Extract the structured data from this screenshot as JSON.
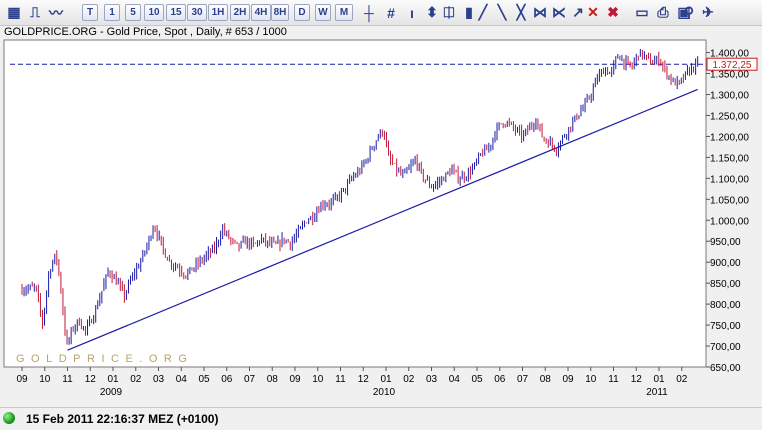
{
  "toolbar": {
    "buttons": [
      {
        "label": "▦",
        "name": "bar-chart-type-icon"
      },
      {
        "label": "⎍",
        "name": "ohlc-chart-type-icon"
      },
      {
        "label": "〰",
        "name": "line-chart-type-icon"
      },
      {
        "label": "T",
        "name": "tick-interval-button"
      },
      {
        "label": "1",
        "name": "interval-1-button"
      },
      {
        "label": "5",
        "name": "interval-5-button"
      },
      {
        "label": "10",
        "name": "interval-10-button"
      },
      {
        "label": "15",
        "name": "interval-15-button"
      },
      {
        "label": "30",
        "name": "interval-30-button"
      },
      {
        "label": "1H",
        "name": "interval-1h-button"
      },
      {
        "label": "2H",
        "name": "interval-2h-button"
      },
      {
        "label": "4H",
        "name": "interval-4h-button"
      },
      {
        "label": "8H",
        "name": "interval-8h-button"
      },
      {
        "label": "D",
        "name": "interval-daily-button"
      },
      {
        "label": "W",
        "name": "interval-weekly-button"
      },
      {
        "label": "M",
        "name": "interval-monthly-button"
      },
      {
        "label": "┼",
        "name": "crosshair-icon"
      },
      {
        "label": "#",
        "name": "grid-icon"
      },
      {
        "label": "ı",
        "name": "info-icon"
      },
      {
        "label": "⬍",
        "name": "scale-icon"
      },
      {
        "label": "⎅",
        "name": "auto-scale-icon"
      },
      {
        "label": "▮",
        "name": "volume-icon"
      },
      {
        "label": "╱",
        "name": "trendline-icon"
      },
      {
        "label": "╲",
        "name": "trendline-down-icon"
      },
      {
        "label": "╳",
        "name": "channel-icon"
      },
      {
        "label": "⋈",
        "name": "fibonacci-icon"
      },
      {
        "label": "⋉",
        "name": "gann-icon"
      },
      {
        "label": "↗",
        "name": "arrow-tool-icon"
      },
      {
        "label": "✕",
        "name": "delete-icon"
      },
      {
        "label": "✖",
        "name": "delete-all-icon"
      },
      {
        "label": "▭",
        "name": "page-setup-icon"
      },
      {
        "label": "⎙",
        "name": "print-icon"
      },
      {
        "label": "▣",
        "name": "save-icon"
      },
      {
        "label": "⚲",
        "name": "zoom-icon"
      },
      {
        "label": "✈",
        "name": "pan-icon"
      }
    ]
  },
  "chart_info": "GOLDPRICE.ORG - Gold Price, Spot , Daily, # 653 / 1000",
  "watermark": "GOLDPRICE.ORG",
  "status": {
    "datetime": "15 Feb 2011 22:16:37  MEZ (+0100)"
  },
  "chart_data": {
    "type": "ohlc",
    "title": "GOLDPRICE.ORG - Gold Price, Spot , Daily, # 653 / 1000",
    "xlabel": "",
    "ylabel": "",
    "ylim": [
      650,
      1430
    ],
    "yticks": [
      650,
      700,
      750,
      800,
      850,
      900,
      950,
      1000,
      1050,
      1100,
      1150,
      1200,
      1250,
      1300,
      1350,
      1400
    ],
    "ytick_labels": [
      "650,00",
      "700,00",
      "750,00",
      "800,00",
      "850,00",
      "900,00",
      "950,00",
      "1.000,00",
      "1.050,00",
      "1.100,00",
      "1.150,00",
      "1.200,00",
      "1.250,00",
      "1.300,00",
      "1.350,00",
      "1.400,00"
    ],
    "xticks": [
      "09",
      "10",
      "11",
      "12",
      "01",
      "02",
      "03",
      "04",
      "05",
      "06",
      "07",
      "08",
      "09",
      "10",
      "11",
      "12",
      "01",
      "02",
      "03",
      "04",
      "05",
      "06",
      "07",
      "08",
      "09",
      "10",
      "11",
      "12",
      "01",
      "02"
    ],
    "year_labels": [
      {
        "label": "2009",
        "at_tick": 4
      },
      {
        "label": "2010",
        "at_tick": 16
      },
      {
        "label": "2011",
        "at_tick": 28
      }
    ],
    "last_price": 1372.25,
    "last_price_label": "1.372,25",
    "grid": false,
    "colors": {
      "up": "#1a1aa8",
      "down": "#c0173a",
      "trendline": "#1a1aa8",
      "last_line": "#1a1aa8",
      "price_box": "#d01818"
    },
    "trendline": {
      "from": {
        "tick": 2,
        "value": 690
      },
      "to": {
        "tick": 29.7,
        "value": 1312
      }
    },
    "series": [
      {
        "values": [
          {
            "tick": 0.0,
            "value": 835
          },
          {
            "tick": 0.6,
            "value": 840
          },
          {
            "tick": 0.9,
            "value": 755
          },
          {
            "tick": 1.2,
            "value": 880
          },
          {
            "tick": 1.5,
            "value": 920
          },
          {
            "tick": 1.7,
            "value": 840
          },
          {
            "tick": 1.9,
            "value": 730
          },
          {
            "tick": 2.0,
            "value": 700
          },
          {
            "tick": 2.2,
            "value": 740
          },
          {
            "tick": 2.5,
            "value": 760
          },
          {
            "tick": 2.8,
            "value": 735
          },
          {
            "tick": 3.2,
            "value": 780
          },
          {
            "tick": 3.5,
            "value": 830
          },
          {
            "tick": 3.8,
            "value": 880
          },
          {
            "tick": 4.2,
            "value": 850
          },
          {
            "tick": 4.5,
            "value": 820
          },
          {
            "tick": 4.8,
            "value": 860
          },
          {
            "tick": 5.2,
            "value": 900
          },
          {
            "tick": 5.5,
            "value": 940
          },
          {
            "tick": 5.8,
            "value": 990
          },
          {
            "tick": 6.2,
            "value": 930
          },
          {
            "tick": 6.5,
            "value": 900
          },
          {
            "tick": 6.8,
            "value": 890
          },
          {
            "tick": 7.2,
            "value": 870
          },
          {
            "tick": 7.5,
            "value": 885
          },
          {
            "tick": 7.8,
            "value": 900
          },
          {
            "tick": 8.2,
            "value": 920
          },
          {
            "tick": 8.5,
            "value": 935
          },
          {
            "tick": 8.8,
            "value": 980
          },
          {
            "tick": 9.2,
            "value": 950
          },
          {
            "tick": 9.5,
            "value": 935
          },
          {
            "tick": 9.8,
            "value": 950
          },
          {
            "tick": 10.2,
            "value": 940
          },
          {
            "tick": 10.5,
            "value": 955
          },
          {
            "tick": 10.8,
            "value": 945
          },
          {
            "tick": 11.2,
            "value": 940
          },
          {
            "tick": 11.5,
            "value": 955
          },
          {
            "tick": 11.8,
            "value": 945
          },
          {
            "tick": 12.2,
            "value": 975
          },
          {
            "tick": 12.5,
            "value": 1000
          },
          {
            "tick": 12.8,
            "value": 1010
          },
          {
            "tick": 13.2,
            "value": 1040
          },
          {
            "tick": 13.5,
            "value": 1040
          },
          {
            "tick": 13.8,
            "value": 1050
          },
          {
            "tick": 14.2,
            "value": 1075
          },
          {
            "tick": 14.5,
            "value": 1100
          },
          {
            "tick": 14.8,
            "value": 1115
          },
          {
            "tick": 15.2,
            "value": 1150
          },
          {
            "tick": 15.4,
            "value": 1175
          },
          {
            "tick": 15.7,
            "value": 1205
          },
          {
            "tick": 15.9,
            "value": 1215
          },
          {
            "tick": 16.1,
            "value": 1150
          },
          {
            "tick": 16.4,
            "value": 1125
          },
          {
            "tick": 16.7,
            "value": 1105
          },
          {
            "tick": 17.0,
            "value": 1120
          },
          {
            "tick": 17.3,
            "value": 1145
          },
          {
            "tick": 17.6,
            "value": 1105
          },
          {
            "tick": 18.0,
            "value": 1080
          },
          {
            "tick": 18.3,
            "value": 1090
          },
          {
            "tick": 18.6,
            "value": 1105
          },
          {
            "tick": 18.9,
            "value": 1120
          },
          {
            "tick": 19.2,
            "value": 1100
          },
          {
            "tick": 19.6,
            "value": 1110
          },
          {
            "tick": 19.9,
            "value": 1130
          },
          {
            "tick": 20.2,
            "value": 1160
          },
          {
            "tick": 20.5,
            "value": 1170
          },
          {
            "tick": 20.8,
            "value": 1210
          },
          {
            "tick": 21.1,
            "value": 1235
          },
          {
            "tick": 21.4,
            "value": 1230
          },
          {
            "tick": 21.7,
            "value": 1215
          },
          {
            "tick": 22.0,
            "value": 1200
          },
          {
            "tick": 22.3,
            "value": 1220
          },
          {
            "tick": 22.6,
            "value": 1240
          },
          {
            "tick": 22.9,
            "value": 1195
          },
          {
            "tick": 23.2,
            "value": 1185
          },
          {
            "tick": 23.5,
            "value": 1170
          },
          {
            "tick": 23.8,
            "value": 1200
          },
          {
            "tick": 24.1,
            "value": 1225
          },
          {
            "tick": 24.4,
            "value": 1250
          },
          {
            "tick": 24.7,
            "value": 1270
          },
          {
            "tick": 25.0,
            "value": 1300
          },
          {
            "tick": 25.3,
            "value": 1340
          },
          {
            "tick": 25.6,
            "value": 1360
          },
          {
            "tick": 25.9,
            "value": 1350
          },
          {
            "tick": 26.2,
            "value": 1395
          },
          {
            "tick": 26.5,
            "value": 1375
          },
          {
            "tick": 26.8,
            "value": 1365
          },
          {
            "tick": 27.1,
            "value": 1400
          },
          {
            "tick": 27.4,
            "value": 1390
          },
          {
            "tick": 27.7,
            "value": 1375
          },
          {
            "tick": 28.0,
            "value": 1385
          },
          {
            "tick": 28.3,
            "value": 1355
          },
          {
            "tick": 28.6,
            "value": 1330
          },
          {
            "tick": 28.9,
            "value": 1325
          },
          {
            "tick": 29.2,
            "value": 1350
          },
          {
            "tick": 29.5,
            "value": 1365
          },
          {
            "tick": 29.7,
            "value": 1372
          }
        ]
      }
    ]
  }
}
